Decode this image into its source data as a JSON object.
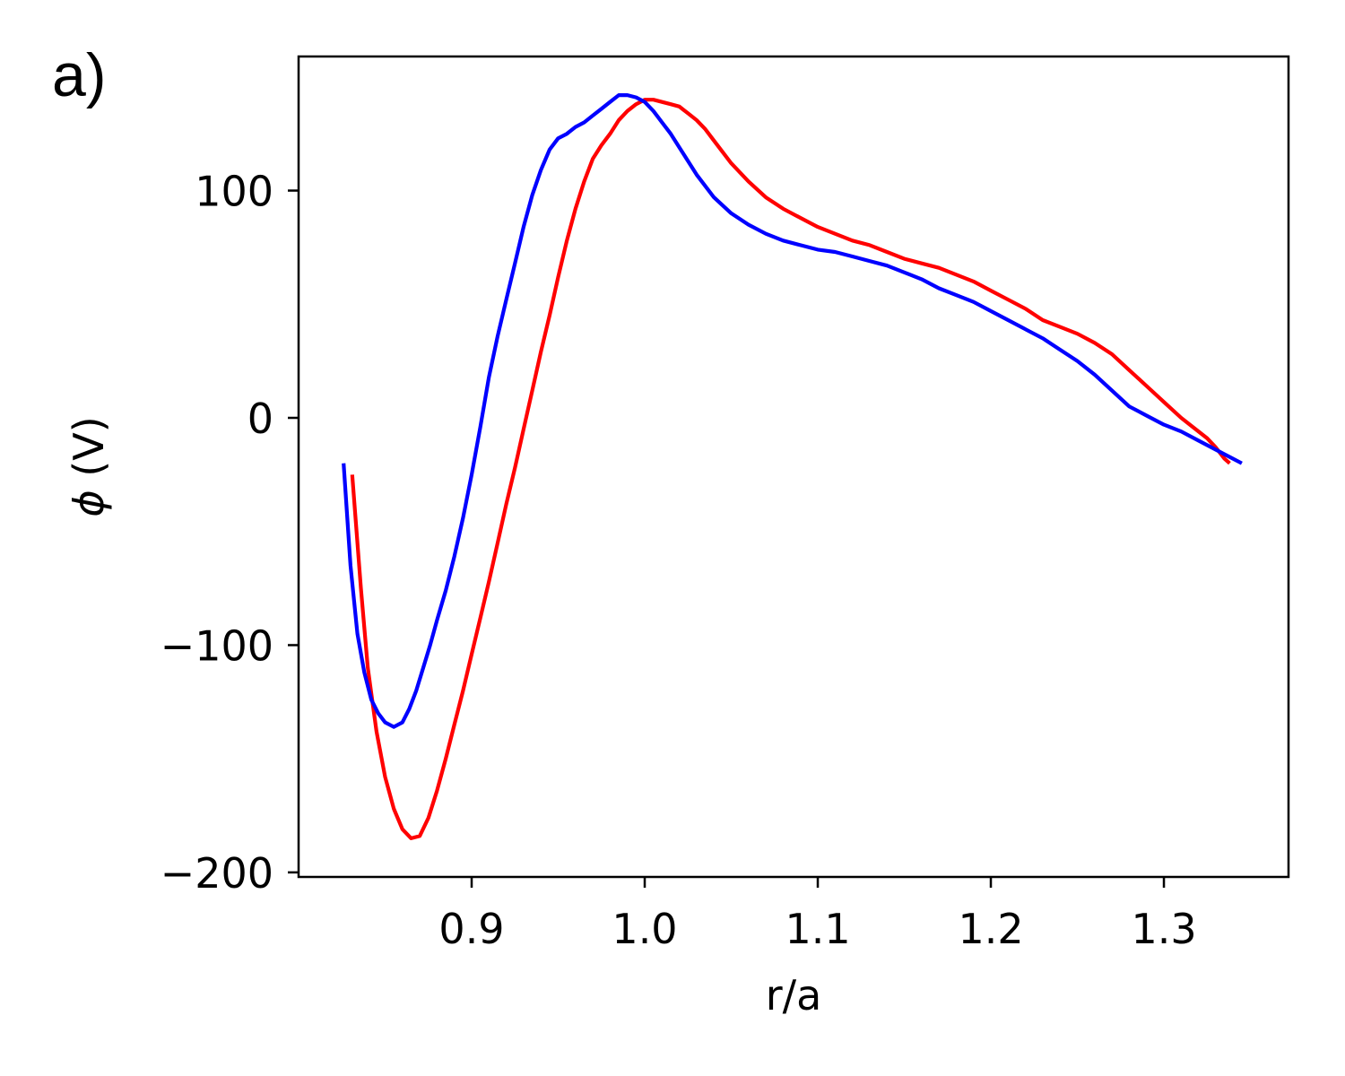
{
  "panel_label": "a)",
  "chart_data": {
    "type": "line",
    "title": "",
    "xlabel": "r/a",
    "ylabel_symbol": "ϕ",
    "ylabel_unit": " (V)",
    "xlim": [
      0.8,
      1.372
    ],
    "ylim": [
      -202,
      159
    ],
    "xticks": [
      0.9,
      1.0,
      1.1,
      1.2,
      1.3
    ],
    "xtick_labels": [
      "0.9",
      "1.0",
      "1.1",
      "1.2",
      "1.3"
    ],
    "yticks": [
      -200,
      -100,
      0,
      100
    ],
    "ytick_labels": [
      "−200",
      "−100",
      "0",
      "100"
    ],
    "grid": false,
    "legend": "none",
    "series": [
      {
        "color": "#ff0000",
        "x": [
          0.831,
          0.836,
          0.84,
          0.845,
          0.85,
          0.855,
          0.86,
          0.865,
          0.87,
          0.875,
          0.88,
          0.885,
          0.89,
          0.895,
          0.9,
          0.905,
          0.91,
          0.915,
          0.92,
          0.925,
          0.93,
          0.935,
          0.94,
          0.945,
          0.95,
          0.955,
          0.96,
          0.965,
          0.97,
          0.975,
          0.98,
          0.985,
          0.99,
          0.995,
          1.0,
          1.005,
          1.01,
          1.015,
          1.02,
          1.025,
          1.03,
          1.035,
          1.04,
          1.05,
          1.06,
          1.07,
          1.08,
          1.09,
          1.1,
          1.11,
          1.12,
          1.13,
          1.14,
          1.15,
          1.16,
          1.17,
          1.18,
          1.19,
          1.2,
          1.21,
          1.22,
          1.23,
          1.24,
          1.25,
          1.26,
          1.27,
          1.28,
          1.29,
          1.3,
          1.31,
          1.32,
          1.325,
          1.33,
          1.335,
          1.338
        ],
        "y": [
          -25,
          -75,
          -110,
          -138,
          -158,
          -172,
          -181,
          -185,
          -184,
          -176,
          -164,
          -150,
          -135,
          -120,
          -104,
          -88,
          -72,
          -55,
          -38,
          -22,
          -5,
          12,
          29,
          45,
          62,
          78,
          92,
          104,
          114,
          120,
          125,
          131,
          135,
          138,
          140,
          140,
          139,
          138,
          137,
          134,
          131,
          127,
          122,
          112,
          104,
          97,
          92,
          88,
          84,
          81,
          78,
          76,
          73,
          70,
          68,
          66,
          63,
          60,
          56,
          52,
          48,
          43,
          40,
          37,
          33,
          28,
          21,
          14,
          7,
          0,
          -6,
          -9,
          -13,
          -18,
          -20
        ]
      },
      {
        "color": "#0000ff",
        "x": [
          0.826,
          0.83,
          0.834,
          0.838,
          0.842,
          0.846,
          0.85,
          0.855,
          0.86,
          0.864,
          0.868,
          0.872,
          0.876,
          0.88,
          0.885,
          0.89,
          0.895,
          0.9,
          0.905,
          0.91,
          0.915,
          0.92,
          0.925,
          0.93,
          0.935,
          0.94,
          0.945,
          0.95,
          0.955,
          0.96,
          0.965,
          0.97,
          0.975,
          0.98,
          0.985,
          0.99,
          0.995,
          1.0,
          1.005,
          1.01,
          1.015,
          1.02,
          1.025,
          1.03,
          1.04,
          1.05,
          1.06,
          1.07,
          1.08,
          1.09,
          1.1,
          1.11,
          1.12,
          1.13,
          1.14,
          1.15,
          1.16,
          1.17,
          1.18,
          1.19,
          1.2,
          1.21,
          1.22,
          1.23,
          1.24,
          1.25,
          1.26,
          1.27,
          1.28,
          1.29,
          1.3,
          1.31,
          1.32,
          1.33,
          1.335,
          1.34,
          1.345
        ],
        "y": [
          -20,
          -65,
          -95,
          -112,
          -124,
          -130,
          -134,
          -136,
          -134,
          -128,
          -120,
          -110,
          -100,
          -89,
          -76,
          -61,
          -44,
          -25,
          -4,
          18,
          36,
          52,
          68,
          84,
          98,
          109,
          118,
          123,
          125,
          128,
          130,
          133,
          136,
          139,
          142,
          142,
          141,
          139,
          135,
          130,
          125,
          119,
          113,
          107,
          97,
          90,
          85,
          81,
          78,
          76,
          74,
          73,
          71,
          69,
          67,
          64,
          61,
          57,
          54,
          51,
          47,
          43,
          39,
          35,
          30,
          25,
          19,
          12,
          5,
          1,
          -3,
          -6,
          -10,
          -14,
          -16,
          -18,
          -20
        ]
      }
    ]
  }
}
